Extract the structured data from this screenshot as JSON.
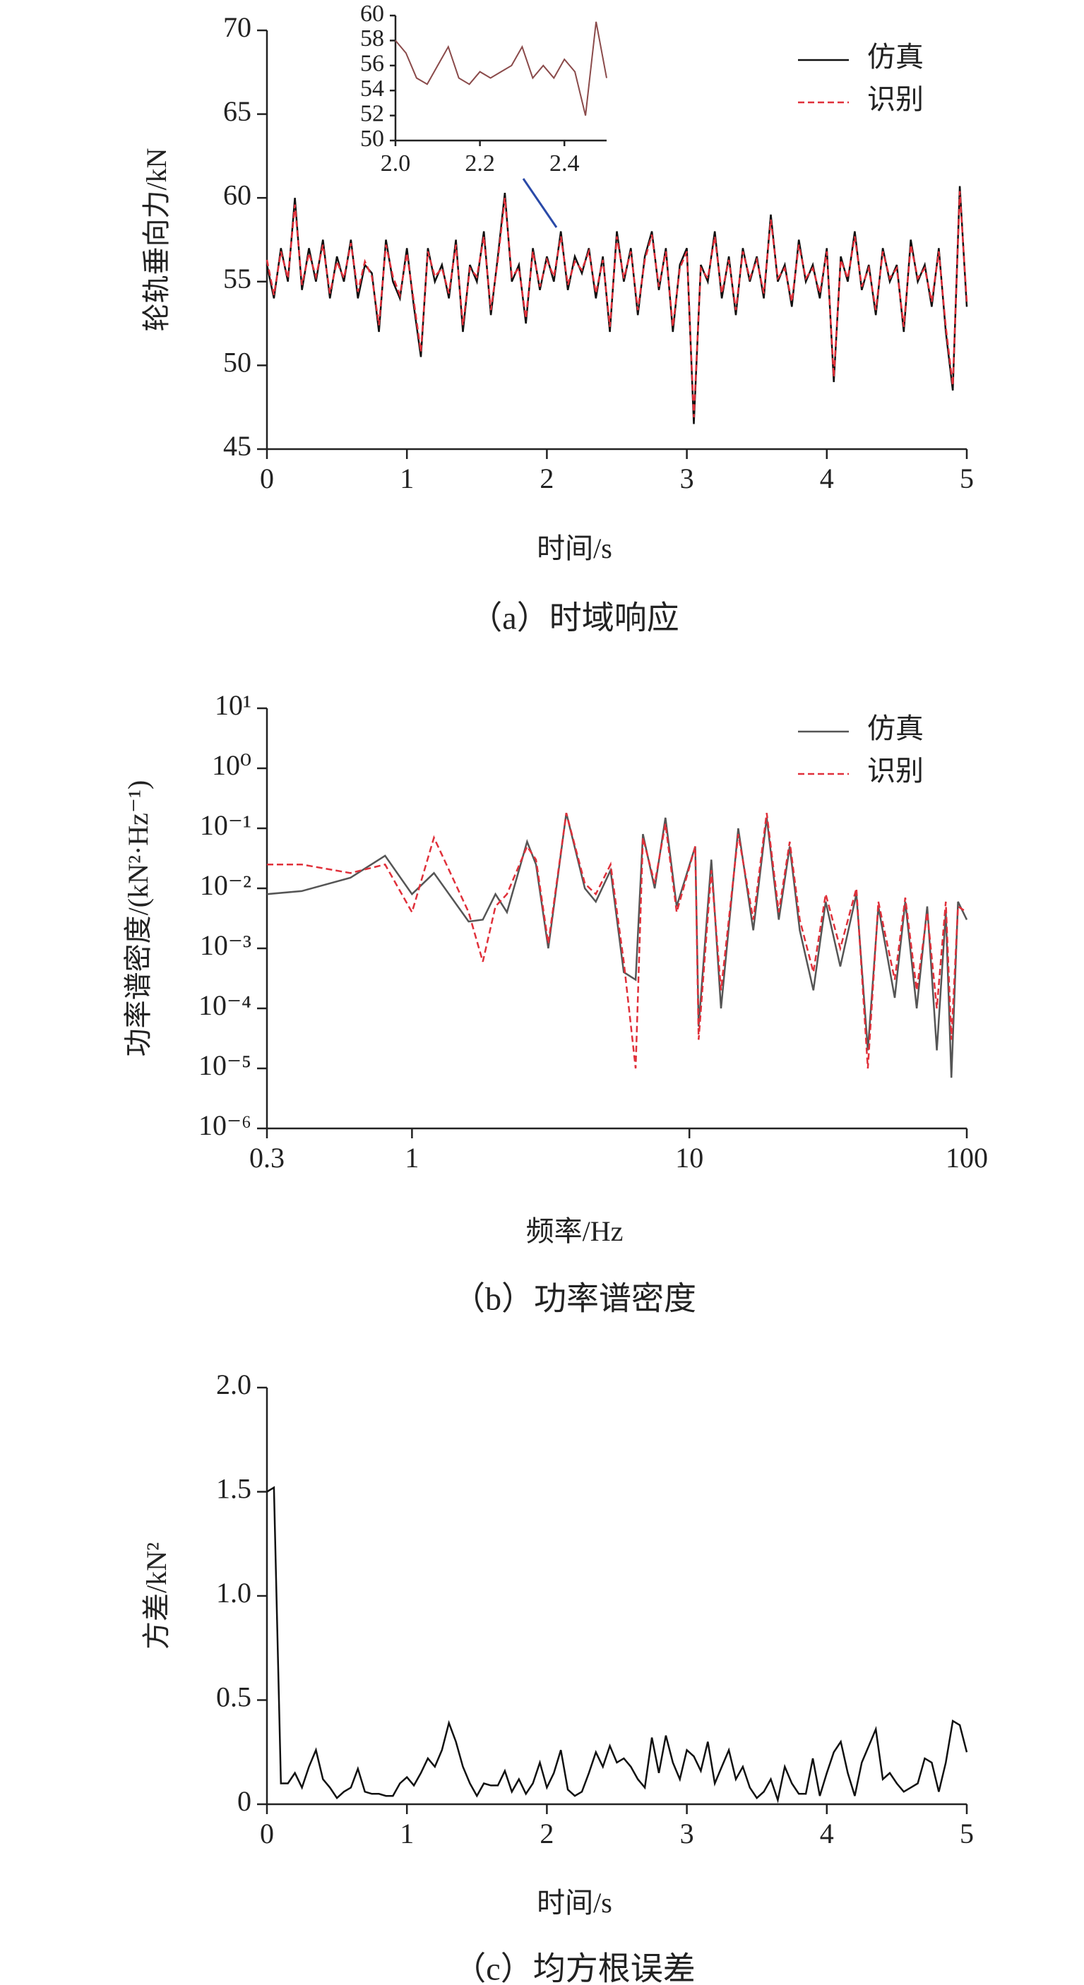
{
  "chart_data": [
    {
      "type": "line",
      "title": "（a）时域响应",
      "xlabel": "时间/s",
      "ylabel": "轮轨垂向力/kN",
      "x": [
        0,
        0.05,
        0.1,
        0.15,
        0.2,
        0.25,
        0.3,
        0.35,
        0.4,
        0.45,
        0.5,
        0.55,
        0.6,
        0.65,
        0.7,
        0.75,
        0.8,
        0.85,
        0.9,
        0.95,
        1,
        1.05,
        1.1,
        1.15,
        1.2,
        1.25,
        1.3,
        1.35,
        1.4,
        1.45,
        1.5,
        1.55,
        1.6,
        1.65,
        1.7,
        1.75,
        1.8,
        1.85,
        1.9,
        1.95,
        2,
        2.05,
        2.1,
        2.15,
        2.2,
        2.25,
        2.3,
        2.35,
        2.4,
        2.45,
        2.5,
        2.55,
        2.6,
        2.65,
        2.7,
        2.75,
        2.8,
        2.85,
        2.9,
        2.95,
        3,
        3.05,
        3.1,
        3.15,
        3.2,
        3.25,
        3.3,
        3.35,
        3.4,
        3.45,
        3.5,
        3.55,
        3.6,
        3.65,
        3.7,
        3.75,
        3.8,
        3.85,
        3.9,
        3.95,
        4,
        4.05,
        4.1,
        4.15,
        4.2,
        4.25,
        4.3,
        4.35,
        4.4,
        4.45,
        4.5,
        4.55,
        4.6,
        4.65,
        4.7,
        4.75,
        4.8,
        4.85,
        4.9,
        4.95,
        5
      ],
      "series": [
        {
          "name": "仿真",
          "color": "#111111",
          "dashed": false,
          "values": [
            56,
            54,
            57,
            55,
            60,
            54.5,
            57,
            55,
            57.5,
            54,
            56.5,
            55,
            57.5,
            54,
            56,
            55.5,
            52,
            57.5,
            55,
            54,
            57,
            53.5,
            50.5,
            57,
            55,
            56,
            54,
            57.5,
            52,
            56,
            55,
            58,
            53,
            56.5,
            60.3,
            55,
            56,
            52.5,
            57,
            54.5,
            56.5,
            55,
            58,
            54.5,
            56.5,
            55.5,
            57,
            54,
            56.5,
            52,
            58,
            55,
            57,
            53,
            56.5,
            58,
            54.5,
            57,
            52,
            56,
            57,
            46.5,
            56,
            55,
            58,
            54,
            56.5,
            53,
            57,
            55,
            56.5,
            54,
            59,
            55,
            56,
            53.5,
            57.5,
            55,
            56,
            54,
            57,
            49,
            56.5,
            55,
            58,
            54.5,
            56,
            53,
            57,
            55,
            56,
            52,
            57.5,
            55,
            56,
            53.5,
            57,
            52,
            48.5,
            60.7,
            53.5
          ]
        },
        {
          "name": "识别",
          "color": "#e0303a",
          "dashed": true,
          "values": [
            56.3,
            54.2,
            56.8,
            55.2,
            59.6,
            54.8,
            56.7,
            55.3,
            57.2,
            54.3,
            56.2,
            55.2,
            57.3,
            54.4,
            56.2,
            55.3,
            52.4,
            57.2,
            55.3,
            54.2,
            56.7,
            53.8,
            50.8,
            56.8,
            55.3,
            55.8,
            54.3,
            57.2,
            52.4,
            55.8,
            55.3,
            57.7,
            53.3,
            56.3,
            60,
            55.3,
            55.8,
            52.8,
            56.8,
            54.7,
            56.3,
            55.3,
            57.7,
            54.8,
            56.2,
            55.7,
            56.8,
            54.3,
            56.3,
            52.3,
            57.7,
            55.2,
            56.8,
            53.3,
            56.3,
            57.8,
            54.7,
            56.8,
            52.3,
            55.8,
            56.8,
            46.9,
            55.8,
            55.2,
            57.7,
            54.3,
            56.3,
            53.3,
            56.8,
            55.2,
            56.3,
            54.3,
            58.7,
            55.2,
            55.8,
            53.8,
            57.2,
            55.2,
            55.8,
            54.3,
            56.8,
            49.3,
            56.3,
            55.2,
            57.7,
            54.7,
            55.8,
            53.3,
            56.8,
            55.2,
            55.8,
            52.3,
            57.2,
            55.2,
            55.8,
            53.8,
            56.8,
            52.3,
            48.8,
            60.4,
            53.8
          ]
        }
      ],
      "xlim": [
        0,
        5
      ],
      "xticks": [
        0,
        1,
        2,
        3,
        4,
        5
      ],
      "ylim": [
        45,
        70
      ],
      "yticks": [
        45,
        50,
        55,
        60,
        65,
        70
      ],
      "legend": "upper right"
    },
    {
      "type": "line",
      "color": "#8a4a4a",
      "x": [
        2,
        2.025,
        2.05,
        2.075,
        2.1,
        2.125,
        2.15,
        2.175,
        2.2,
        2.225,
        2.25,
        2.275,
        2.3,
        2.325,
        2.35,
        2.375,
        2.4,
        2.425,
        2.45,
        2.475,
        2.5
      ],
      "values": [
        58,
        57,
        55,
        54.5,
        56,
        57.5,
        55,
        54.5,
        55.5,
        55,
        55.5,
        56,
        57.5,
        55,
        56,
        55,
        56.5,
        55.5,
        52,
        59.5,
        55
      ],
      "xlim": [
        2,
        2.5
      ],
      "xticks": [
        {
          "value": 2,
          "label": "2.0"
        },
        2.2,
        2.4
      ],
      "ylim": [
        50,
        60
      ],
      "yticks": [
        50,
        52,
        54,
        56,
        58,
        60
      ]
    },
    {
      "type": "line",
      "title": "（b）功率谱密度",
      "xlabel": "频率/Hz",
      "ylabel": "功率谱密度/(kN²·Hz⁻¹)",
      "x": [
        0.3,
        0.4,
        0.6,
        0.8,
        1,
        1.2,
        1.6,
        1.8,
        2,
        2.2,
        2.6,
        2.8,
        3.1,
        3.6,
        4.2,
        4.6,
        5.2,
        5.8,
        6.4,
        6.8,
        7.5,
        8.2,
        9,
        10.5,
        10.8,
        12,
        13,
        15,
        17,
        19,
        21,
        23,
        25,
        28,
        31,
        35,
        40,
        44,
        48,
        55,
        60,
        66,
        72,
        78,
        84,
        88,
        93,
        100
      ],
      "series": [
        {
          "name": "仿真",
          "color": "#555555",
          "dashed": false,
          "values": [
            0.008,
            0.009,
            0.015,
            0.035,
            0.008,
            0.018,
            0.0028,
            0.003,
            0.008,
            0.004,
            0.06,
            0.025,
            0.001,
            0.18,
            0.01,
            0.006,
            0.02,
            0.0004,
            0.0003,
            0.08,
            0.01,
            0.15,
            0.005,
            0.05,
            5e-05,
            0.03,
            0.0001,
            0.1,
            0.002,
            0.15,
            0.003,
            0.05,
            0.002,
            0.0002,
            0.006,
            0.0005,
            0.008,
            2e-05,
            0.005,
            0.00015,
            0.006,
            0.0001,
            0.005,
            2e-05,
            0.004,
            7e-06,
            0.006,
            0.003
          ]
        },
        {
          "name": "识别",
          "color": "#e0303a",
          "dashed": true,
          "values": [
            0.025,
            0.025,
            0.018,
            0.025,
            0.004,
            0.07,
            0.004,
            0.0006,
            0.005,
            0.008,
            0.05,
            0.03,
            0.0012,
            0.18,
            0.012,
            0.008,
            0.025,
            0.0006,
            1e-05,
            0.07,
            0.012,
            0.12,
            0.004,
            0.05,
            3e-05,
            0.02,
            0.0002,
            0.08,
            0.003,
            0.18,
            0.004,
            0.06,
            0.003,
            0.0004,
            0.008,
            0.001,
            0.01,
            1e-05,
            0.006,
            0.0003,
            0.007,
            0.0002,
            0.004,
            0.0001,
            0.006,
            3e-05,
            0.005,
            0.004
          ]
        }
      ],
      "xlim": [
        0.3,
        100
      ],
      "xticks": [
        0.3,
        1,
        10,
        100
      ],
      "xscale": "log",
      "yscale": "log",
      "ylim": [
        1e-06,
        10
      ],
      "yticks": [
        {
          "value": 1e-06,
          "label": "10⁻⁶"
        },
        {
          "value": 1e-05,
          "label": "10⁻⁵"
        },
        {
          "value": 0.0001,
          "label": "10⁻⁴"
        },
        {
          "value": 0.001,
          "label": "10⁻³"
        },
        {
          "value": 0.01,
          "label": "10⁻²"
        },
        {
          "value": 0.1,
          "label": "10⁻¹"
        },
        {
          "value": 1,
          "label": "10⁰"
        },
        {
          "value": 10,
          "label": "10¹"
        }
      ],
      "legend": "upper right"
    },
    {
      "type": "line",
      "title": "（c）均方根误差",
      "xlabel": "时间/s",
      "ylabel": "方差/kN²",
      "color": "#111111",
      "x": [
        0,
        0.05,
        0.1,
        0.15,
        0.2,
        0.25,
        0.3,
        0.35,
        0.4,
        0.45,
        0.5,
        0.55,
        0.6,
        0.65,
        0.7,
        0.75,
        0.8,
        0.85,
        0.9,
        0.95,
        1,
        1.05,
        1.1,
        1.15,
        1.2,
        1.25,
        1.3,
        1.35,
        1.4,
        1.45,
        1.5,
        1.55,
        1.6,
        1.65,
        1.7,
        1.75,
        1.8,
        1.85,
        1.9,
        1.95,
        2,
        2.05,
        2.1,
        2.15,
        2.2,
        2.25,
        2.3,
        2.35,
        2.4,
        2.45,
        2.5,
        2.55,
        2.6,
        2.65,
        2.7,
        2.75,
        2.8,
        2.85,
        2.9,
        2.95,
        3,
        3.05,
        3.1,
        3.15,
        3.2,
        3.25,
        3.3,
        3.35,
        3.4,
        3.45,
        3.5,
        3.55,
        3.6,
        3.65,
        3.7,
        3.75,
        3.8,
        3.85,
        3.9,
        3.95,
        4,
        4.05,
        4.1,
        4.15,
        4.2,
        4.25,
        4.3,
        4.35,
        4.4,
        4.45,
        4.5,
        4.55,
        4.6,
        4.65,
        4.7,
        4.75,
        4.8,
        4.85,
        4.9,
        4.95,
        5
      ],
      "values": [
        1.5,
        1.52,
        0.1,
        0.1,
        0.15,
        0.08,
        0.18,
        0.26,
        0.12,
        0.08,
        0.03,
        0.06,
        0.08,
        0.17,
        0.06,
        0.05,
        0.05,
        0.04,
        0.04,
        0.1,
        0.13,
        0.09,
        0.15,
        0.22,
        0.18,
        0.26,
        0.39,
        0.3,
        0.18,
        0.1,
        0.04,
        0.1,
        0.09,
        0.09,
        0.16,
        0.06,
        0.12,
        0.05,
        0.1,
        0.2,
        0.08,
        0.15,
        0.26,
        0.07,
        0.04,
        0.06,
        0.15,
        0.25,
        0.18,
        0.28,
        0.2,
        0.22,
        0.18,
        0.12,
        0.08,
        0.32,
        0.15,
        0.33,
        0.2,
        0.12,
        0.26,
        0.23,
        0.16,
        0.3,
        0.1,
        0.18,
        0.26,
        0.12,
        0.18,
        0.08,
        0.03,
        0.06,
        0.12,
        0.02,
        0.18,
        0.1,
        0.05,
        0.05,
        0.22,
        0.04,
        0.15,
        0.25,
        0.3,
        0.15,
        0.04,
        0.2,
        0.28,
        0.36,
        0.12,
        0.15,
        0.1,
        0.06,
        0.08,
        0.1,
        0.22,
        0.2,
        0.06,
        0.2,
        0.4,
        0.38,
        0.25
      ],
      "xlim": [
        0,
        5
      ],
      "xticks": [
        0,
        1,
        2,
        3,
        4,
        5
      ],
      "ylim": [
        0,
        2
      ],
      "yticks": [
        0,
        0.5,
        {
          "value": 1,
          "label": "1.0"
        },
        1.5,
        {
          "value": 2,
          "label": "2.0"
        }
      ]
    }
  ]
}
